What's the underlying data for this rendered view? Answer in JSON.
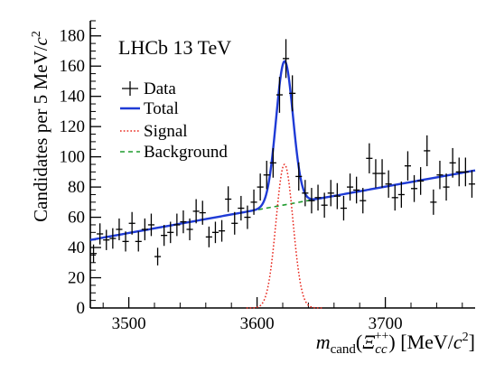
{
  "chart_data": {
    "type": "scatter",
    "title": "",
    "experiment_label": "LHCb 13 TeV",
    "xlabel_parts": {
      "main": "m",
      "sub": "cand",
      "open": "(",
      "particle": "Ξ",
      "particle_sub": "cc",
      "particle_sup": "++",
      "close": ")",
      "unit": " [MeV/",
      "unit_c": "c",
      "unit_c_sup": "2",
      "unit_close": "]"
    },
    "ylabel_parts": {
      "text": "Candidates per 5 MeV/",
      "c": "c",
      "sup": "2"
    },
    "xlim": [
      3470,
      3770
    ],
    "ylim": [
      0,
      190
    ],
    "x_ticks": [
      3500,
      3600,
      3700
    ],
    "y_ticks": [
      0,
      20,
      40,
      60,
      80,
      100,
      120,
      140,
      160,
      180
    ],
    "legend": {
      "placement": "top-left",
      "entries": [
        {
          "label": "Data",
          "style": "errorbar-marker",
          "color": "#000000"
        },
        {
          "label": "Total",
          "style": "solid",
          "color": "#1f3bd6"
        },
        {
          "label": "Signal",
          "style": "dotted",
          "color": "#e8261c"
        },
        {
          "label": "Background",
          "style": "dashed",
          "color": "#1e9c2e"
        }
      ]
    },
    "bin_width": 5,
    "data_points": {
      "x": [
        3472.5,
        3477.5,
        3482.5,
        3487.5,
        3492.5,
        3497.5,
        3502.5,
        3507.5,
        3512.5,
        3517.5,
        3522.5,
        3527.5,
        3532.5,
        3537.5,
        3542.5,
        3547.5,
        3552.5,
        3557.5,
        3562.5,
        3567.5,
        3572.5,
        3577.5,
        3582.5,
        3587.5,
        3592.5,
        3597.5,
        3602.5,
        3607.5,
        3612.5,
        3617.5,
        3622.5,
        3627.5,
        3632.5,
        3637.5,
        3642.5,
        3647.5,
        3652.5,
        3657.5,
        3662.5,
        3667.5,
        3672.5,
        3677.5,
        3682.5,
        3687.5,
        3692.5,
        3697.5,
        3702.5,
        3707.5,
        3712.5,
        3717.5,
        3722.5,
        3727.5,
        3732.5,
        3737.5,
        3742.5,
        3747.5,
        3752.5,
        3757.5,
        3762.5,
        3767.5
      ],
      "y": [
        36,
        49,
        45,
        46,
        52,
        44,
        56,
        44,
        52,
        55,
        34,
        48,
        50,
        55,
        57,
        52,
        64,
        63,
        47,
        50,
        51,
        72,
        56,
        66,
        60,
        70,
        80,
        88,
        96,
        141,
        165,
        142,
        87,
        76,
        71,
        73,
        68,
        76,
        74,
        66,
        80,
        78,
        71,
        99,
        89,
        89,
        82,
        73,
        75,
        94,
        79,
        84,
        104,
        70,
        88,
        80,
        96,
        90,
        90,
        82
      ]
    },
    "series": [
      {
        "name": "Total",
        "model": "background + signal"
      },
      {
        "name": "Signal",
        "model": "gaussian",
        "mean": 3621.4,
        "sigma": 6.6,
        "amplitude": 95
      },
      {
        "name": "Background",
        "model": "linear",
        "points": [
          [
            3470,
            45
          ],
          [
            3770,
            91
          ]
        ]
      }
    ],
    "grid": false
  }
}
